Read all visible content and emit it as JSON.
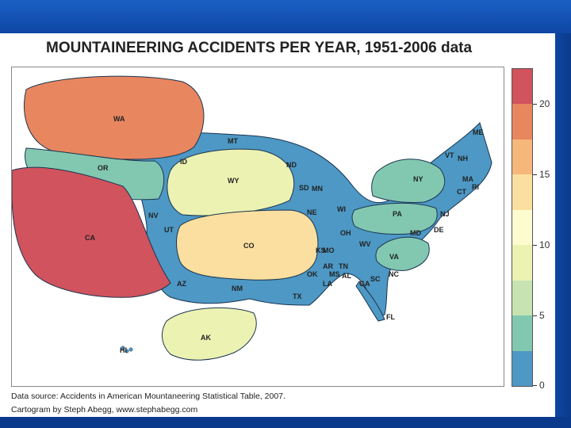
{
  "title": "MOUNTAINEERING ACCIDENTS PER YEAR, 1951-2006 data",
  "caption": {
    "line1": "Data source: Accidents in American Mountaneering Statistical Table, 2007.",
    "line2": "Cartogram by Steph Abegg, www.stephabegg.com"
  },
  "legend": {
    "tick_labels": [
      "20",
      "15",
      "10",
      "5",
      "0"
    ],
    "colors": [
      "#d0535e",
      "#e8865f",
      "#f5b77a",
      "#fbdfa0",
      "#fdfbd0",
      "#ecf2b2",
      "#c7e3b2",
      "#82c8b1",
      "#4d98c5"
    ]
  },
  "states": [
    {
      "abbr": "WA",
      "color": "#e8865f"
    },
    {
      "abbr": "OR",
      "color": "#82c8b1"
    },
    {
      "abbr": "CA",
      "color": "#d0535e"
    },
    {
      "abbr": "WY",
      "color": "#ecf2b2"
    },
    {
      "abbr": "CO",
      "color": "#fbdfa0"
    },
    {
      "abbr": "AK",
      "color": "#ecf2b2"
    },
    {
      "abbr": "NY",
      "color": "#82c8b1"
    },
    {
      "abbr": "PA",
      "color": "#82c8b1"
    },
    {
      "abbr": "VA",
      "color": "#82c8b1"
    },
    {
      "abbr": "MT",
      "color": "#4d98c5"
    },
    {
      "abbr": "ID",
      "color": "#4d98c5"
    },
    {
      "abbr": "NV",
      "color": "#4d98c5"
    },
    {
      "abbr": "UT",
      "color": "#4d98c5"
    },
    {
      "abbr": "AZ",
      "color": "#4d98c5"
    },
    {
      "abbr": "NM",
      "color": "#4d98c5"
    },
    {
      "abbr": "TX",
      "color": "#4d98c5"
    },
    {
      "abbr": "ND",
      "color": "#4d98c5"
    },
    {
      "abbr": "SD",
      "color": "#4d98c5"
    },
    {
      "abbr": "MN",
      "color": "#4d98c5"
    },
    {
      "abbr": "NE",
      "color": "#4d98c5"
    },
    {
      "abbr": "WI",
      "color": "#4d98c5"
    },
    {
      "abbr": "OH",
      "color": "#4d98c5"
    },
    {
      "abbr": "KS",
      "color": "#4d98c5"
    },
    {
      "abbr": "MO",
      "color": "#4d98c5"
    },
    {
      "abbr": "OK",
      "color": "#4d98c5"
    },
    {
      "abbr": "AR",
      "color": "#4d98c5"
    },
    {
      "abbr": "TN",
      "color": "#4d98c5"
    },
    {
      "abbr": "WV",
      "color": "#4d98c5"
    },
    {
      "abbr": "NC",
      "color": "#4d98c5"
    },
    {
      "abbr": "LA",
      "color": "#4d98c5"
    },
    {
      "abbr": "MS",
      "color": "#4d98c5"
    },
    {
      "abbr": "AL",
      "color": "#4d98c5"
    },
    {
      "abbr": "GA",
      "color": "#4d98c5"
    },
    {
      "abbr": "SC",
      "color": "#4d98c5"
    },
    {
      "abbr": "FL",
      "color": "#4d98c5"
    },
    {
      "abbr": "ME",
      "color": "#4d98c5"
    },
    {
      "abbr": "VT",
      "color": "#4d98c5"
    },
    {
      "abbr": "NH",
      "color": "#4d98c5"
    },
    {
      "abbr": "MA",
      "color": "#4d98c5"
    },
    {
      "abbr": "CT",
      "color": "#4d98c5"
    },
    {
      "abbr": "RI",
      "color": "#4d98c5"
    },
    {
      "abbr": "NJ",
      "color": "#4d98c5"
    },
    {
      "abbr": "DE",
      "color": "#4d98c5"
    },
    {
      "abbr": "MD",
      "color": "#4d98c5"
    },
    {
      "abbr": "HI",
      "color": "#4d98c5"
    }
  ]
}
